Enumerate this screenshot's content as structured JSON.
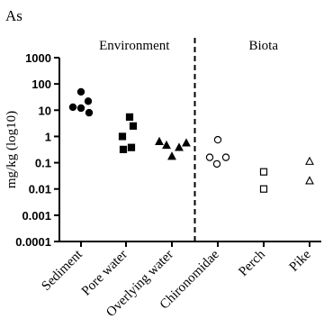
{
  "chart_data": {
    "type": "scatter",
    "panel_label": "As",
    "ylabel": "mg/kg (log10)",
    "yscale": "log",
    "ylim": [
      0.0001,
      1000
    ],
    "yticks": [
      "1000",
      "100",
      "10",
      "1",
      "0.1",
      "0.01",
      "0.001",
      "0.0001"
    ],
    "grid": false,
    "groups": [
      "Environment",
      "Biota"
    ],
    "divider_after": "Overlying water",
    "categories": [
      "Sediment",
      "Pore water",
      "Overlying water",
      "Chironomidae",
      "Perch",
      "Pike"
    ],
    "series": [
      {
        "category": "Sediment",
        "group": "Environment",
        "marker": "circle-filled",
        "values": [
          50,
          22,
          13,
          12,
          8
        ]
      },
      {
        "category": "Pore water",
        "group": "Environment",
        "marker": "square-filled",
        "values": [
          5.5,
          2.5,
          1.0,
          0.38,
          0.32
        ]
      },
      {
        "category": "Overlying water",
        "group": "Environment",
        "marker": "triangle-filled",
        "values": [
          0.62,
          0.45,
          0.37,
          0.55,
          0.17
        ]
      },
      {
        "category": "Chironomidae",
        "group": "Biota",
        "marker": "circle-open",
        "values": [
          0.75,
          0.16,
          0.09,
          0.16
        ]
      },
      {
        "category": "Perch",
        "group": "Biota",
        "marker": "square-open",
        "values": [
          0.045,
          0.01
        ]
      },
      {
        "category": "Pike",
        "group": "Biota",
        "marker": "triangle-open",
        "values": [
          0.11,
          0.02
        ]
      }
    ]
  }
}
